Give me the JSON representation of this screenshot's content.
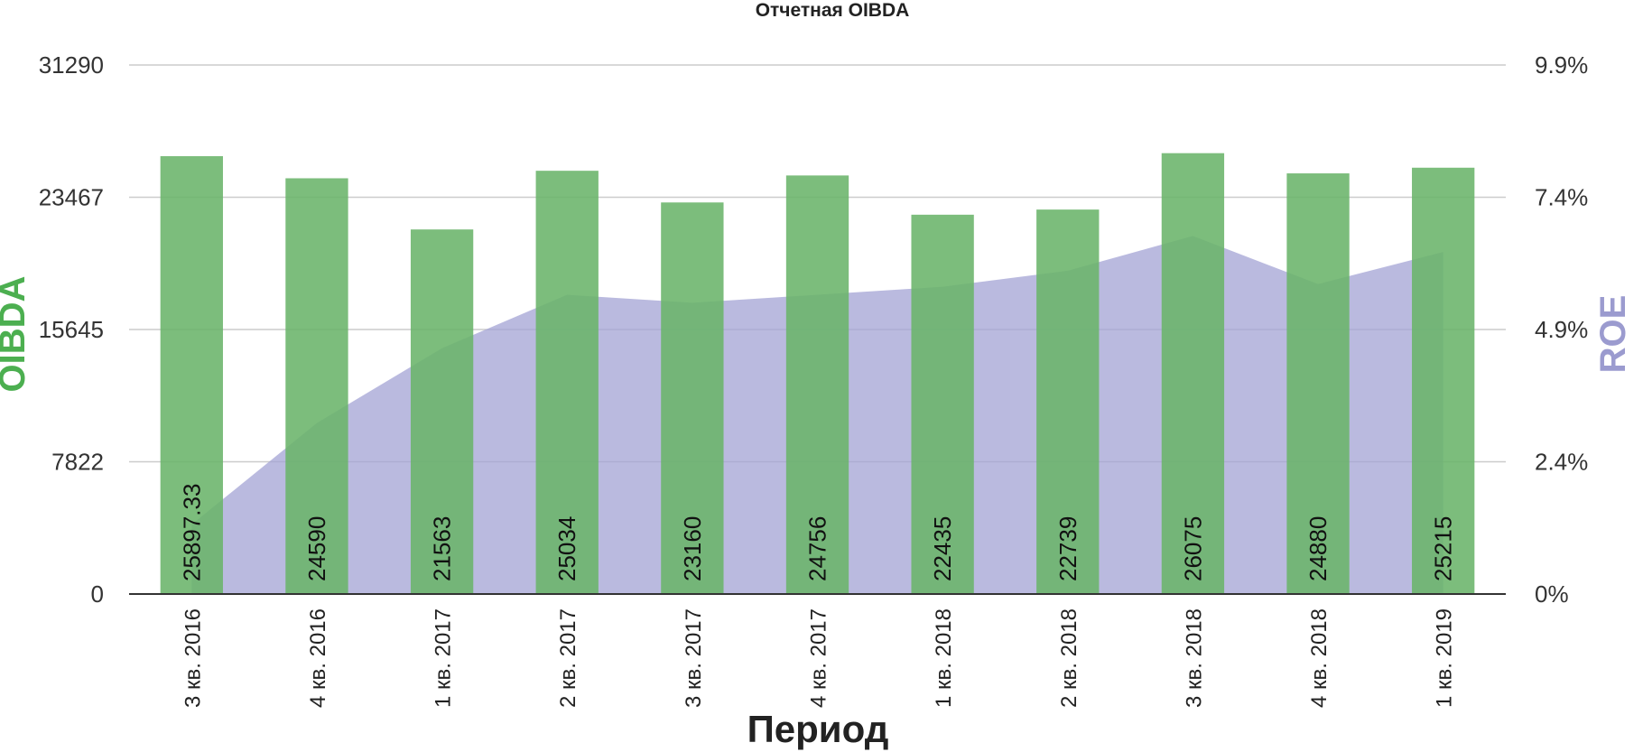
{
  "chart_data": {
    "type": "bar",
    "title": "Отчетная OIBDA",
    "xlabel": "Период",
    "ylabel_left": "OIBDA",
    "ylabel_right": "ROE",
    "categories": [
      "3 кв. 2016",
      "4 кв. 2016",
      "1 кв. 2017",
      "2 кв. 2017",
      "3 кв. 2017",
      "4 кв. 2017",
      "1 кв. 2018",
      "2 кв. 2018",
      "3 кв. 2018",
      "4 кв. 2018",
      "1 кв. 2019"
    ],
    "bar_labels": [
      "25897.33",
      "24590",
      "21563",
      "25034",
      "23160",
      "24756",
      "22435",
      "22739",
      "26075",
      "24880",
      "25215"
    ],
    "series": [
      {
        "name": "OIBDA",
        "type": "bar",
        "axis": "left",
        "color": "#6ab46a",
        "values": [
          25897.33,
          24590,
          21563,
          25034,
          23160,
          24756,
          22435,
          22739,
          26075,
          24880,
          25215
        ]
      },
      {
        "name": "ROE",
        "type": "area",
        "axis": "right",
        "color": "#a3a3d4",
        "values": [
          1.3,
          3.2,
          4.6,
          5.6,
          5.45,
          5.6,
          5.75,
          6.05,
          6.7,
          5.8,
          6.4
        ]
      }
    ],
    "y_left": {
      "ticks": [
        "0",
        "7822",
        "15645",
        "23467",
        "31290"
      ],
      "ylim": [
        0,
        31290
      ]
    },
    "y_right": {
      "ticks": [
        "0%",
        "2.4%",
        "4.9%",
        "7.4%",
        "9.9%"
      ],
      "ylim": [
        0,
        9.9
      ]
    },
    "grid": true,
    "legend": "none",
    "axis_label_colors": {
      "left": "#4caf50",
      "right": "#9b9bcf"
    }
  }
}
